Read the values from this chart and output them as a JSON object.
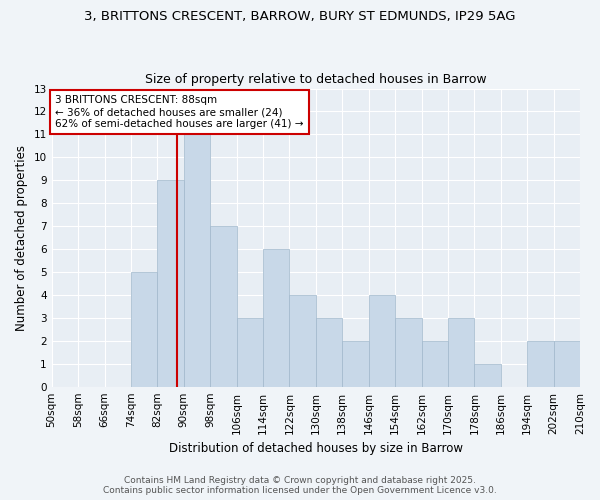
{
  "title": "3, BRITTONS CRESCENT, BARROW, BURY ST EDMUNDS, IP29 5AG",
  "subtitle": "Size of property relative to detached houses in Barrow",
  "xlabel": "Distribution of detached houses by size in Barrow",
  "ylabel": "Number of detached properties",
  "bin_starts": [
    50,
    58,
    66,
    74,
    82,
    90,
    98,
    106,
    114,
    122,
    130,
    138,
    146,
    154,
    162,
    170,
    178,
    186,
    194,
    202
  ],
  "bin_width": 8,
  "bar_heights": [
    0,
    0,
    0,
    5,
    9,
    11,
    7,
    3,
    6,
    4,
    3,
    2,
    4,
    3,
    2,
    3,
    1,
    0,
    2,
    2
  ],
  "bar_color": "#c8d8e8",
  "bar_edgecolor": "#a0b8cc",
  "property_size": 88,
  "vline_color": "#cc0000",
  "annotation_text": "3 BRITTONS CRESCENT: 88sqm\n← 36% of detached houses are smaller (24)\n62% of semi-detached houses are larger (41) →",
  "annotation_box_color": "#ffffff",
  "annotation_box_edgecolor": "#cc0000",
  "ylim": [
    0,
    13
  ],
  "yticks": [
    0,
    1,
    2,
    3,
    4,
    5,
    6,
    7,
    8,
    9,
    10,
    11,
    12,
    13
  ],
  "tick_labels": [
    "50sqm",
    "58sqm",
    "66sqm",
    "74sqm",
    "82sqm",
    "90sqm",
    "98sqm",
    "106sqm",
    "114sqm",
    "122sqm",
    "130sqm",
    "138sqm",
    "146sqm",
    "154sqm",
    "162sqm",
    "170sqm",
    "178sqm",
    "186sqm",
    "194sqm",
    "202sqm",
    "210sqm"
  ],
  "footer_line1": "Contains HM Land Registry data © Crown copyright and database right 2025.",
  "footer_line2": "Contains public sector information licensed under the Open Government Licence v3.0.",
  "bg_color": "#f0f4f8",
  "plot_bg_color": "#e8eef4",
  "title_fontsize": 9.5,
  "subtitle_fontsize": 9,
  "axis_fontsize": 8.5,
  "tick_fontsize": 7.5,
  "footer_fontsize": 6.5,
  "annotation_fontsize": 7.5
}
